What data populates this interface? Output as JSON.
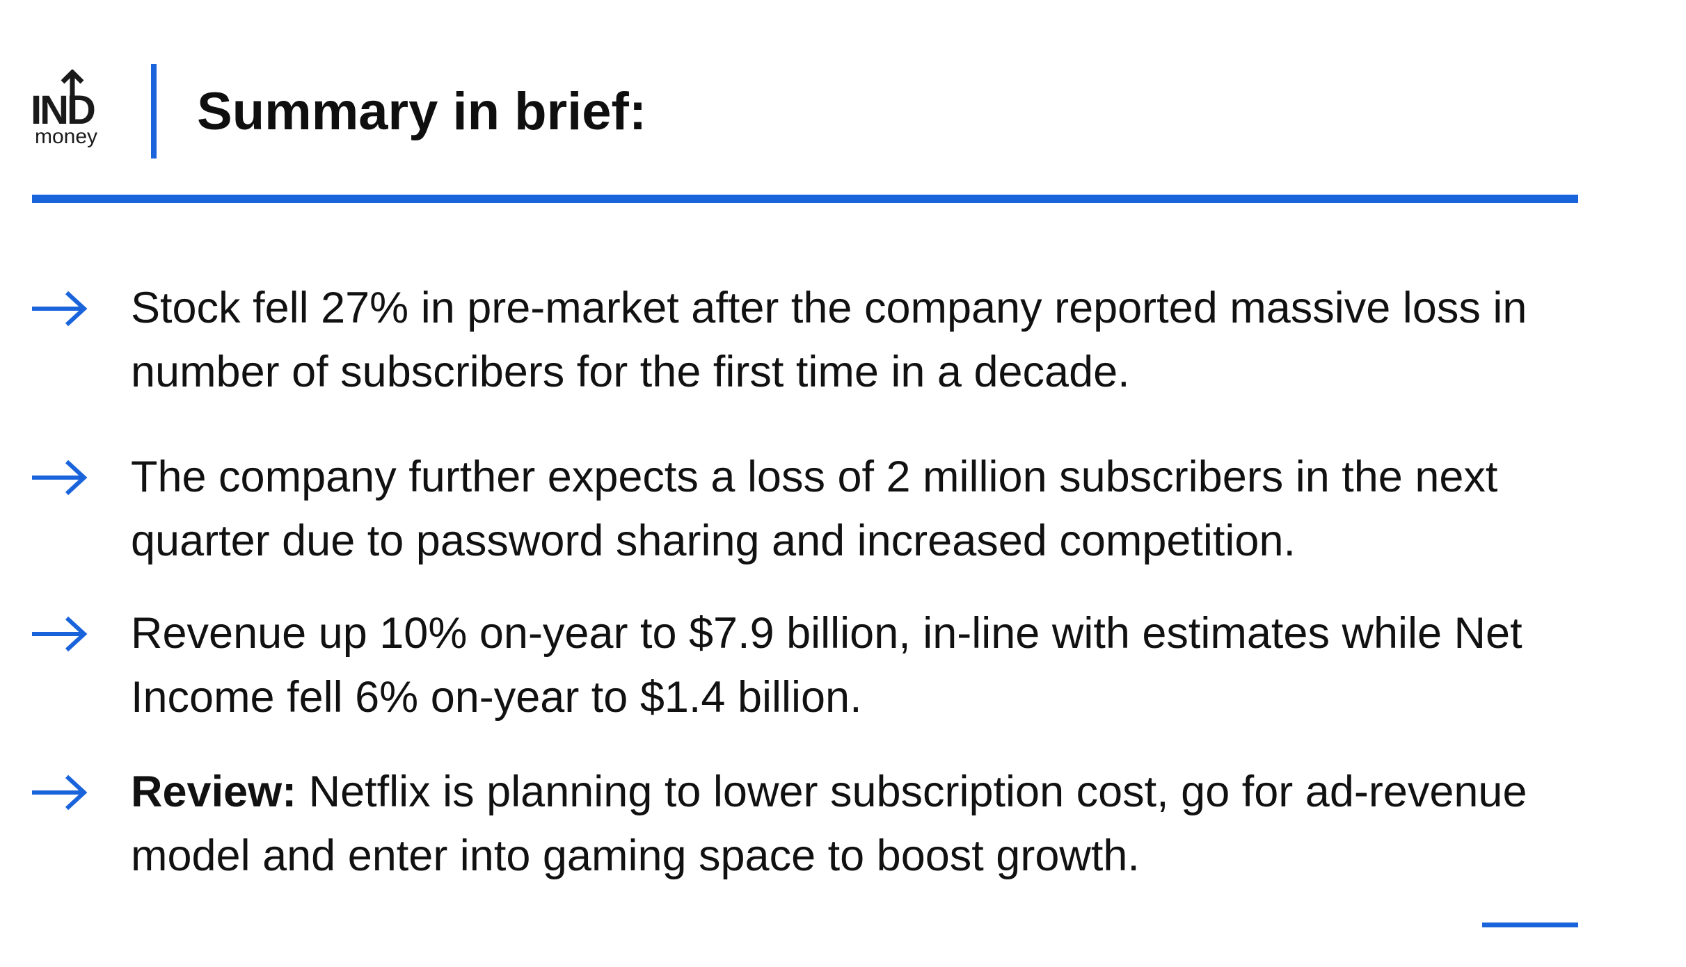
{
  "brand": {
    "logo_main": "IND",
    "logo_sub": "money",
    "accent_color": "#1a64db"
  },
  "header": {
    "title": "Summary in brief:"
  },
  "bullets": [
    {
      "icon": "arrow-right-icon",
      "lead": "",
      "text": "Stock fell 27% in pre-market after the company reported massive loss in number of subscribers for the first time in a decade."
    },
    {
      "icon": "arrow-right-icon",
      "lead": "",
      "text": "The company further expects a loss of 2 million subscribers in the next quarter due to password sharing and increased competition."
    },
    {
      "icon": "arrow-right-icon",
      "lead": "",
      "text": "Revenue up 10% on-year to $7.9 billion, in-line with estimates while Net Income fell 6% on-year to $1.4 billion."
    },
    {
      "icon": "arrow-right-icon",
      "lead": "Review:",
      "text": " Netflix is planning to lower subscription cost, go for ad-revenue model and enter into gaming space to boost growth."
    }
  ]
}
